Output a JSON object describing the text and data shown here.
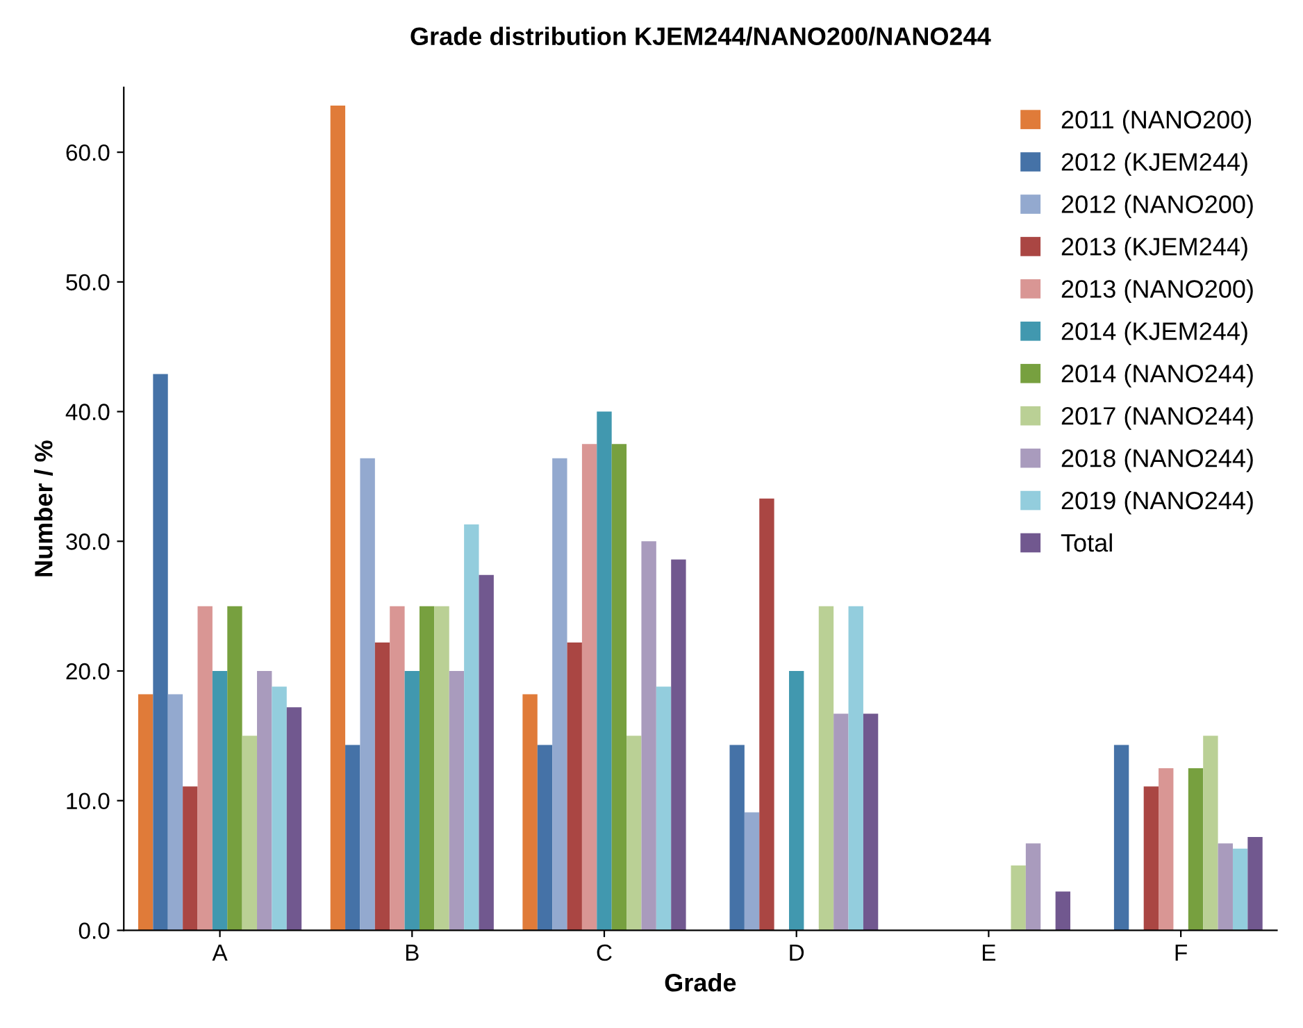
{
  "chart_data": {
    "type": "bar",
    "title": "Grade distribution KJEM244/NANO200/NANO244",
    "xlabel": "Grade",
    "ylabel": "Number / %",
    "categories": [
      "A",
      "B",
      "C",
      "D",
      "E",
      "F"
    ],
    "series": [
      {
        "name": "2011 (NANO200)",
        "color": "#e07b39",
        "values": [
          18.2,
          63.6,
          18.2,
          0,
          0,
          0
        ]
      },
      {
        "name": "2012 (KJEM244)",
        "color": "#4572a7",
        "values": [
          42.9,
          14.3,
          14.3,
          14.3,
          0,
          14.3
        ]
      },
      {
        "name": "2012 (NANO200)",
        "color": "#93a9cf",
        "values": [
          18.2,
          36.4,
          36.4,
          9.1,
          0,
          0
        ]
      },
      {
        "name": "2013 (KJEM244)",
        "color": "#aa4643",
        "values": [
          11.1,
          22.2,
          22.2,
          33.3,
          0,
          11.1
        ]
      },
      {
        "name": "2013 (NANO200)",
        "color": "#d99694",
        "values": [
          25.0,
          25.0,
          37.5,
          0,
          0,
          12.5
        ]
      },
      {
        "name": "2014 (KJEM244)",
        "color": "#4198af",
        "values": [
          20.0,
          20.0,
          40.0,
          20.0,
          0,
          0
        ]
      },
      {
        "name": "2014 (NANO244)",
        "color": "#77a03f",
        "values": [
          25.0,
          25.0,
          37.5,
          0,
          0,
          12.5
        ]
      },
      {
        "name": "2017 (NANO244)",
        "color": "#bad095",
        "values": [
          15.0,
          25.0,
          15.0,
          25.0,
          5.0,
          15.0
        ]
      },
      {
        "name": "2018 (NANO244)",
        "color": "#a99bbd",
        "values": [
          20.0,
          20.0,
          30.0,
          16.7,
          6.7,
          6.7
        ]
      },
      {
        "name": "2019 (NANO244)",
        "color": "#93cddd",
        "values": [
          18.8,
          31.3,
          18.8,
          25.0,
          0,
          6.3
        ]
      },
      {
        "name": "Total",
        "color": "#71588f",
        "values": [
          17.2,
          27.4,
          28.6,
          16.7,
          3.0,
          7.2
        ]
      }
    ],
    "ylim": [
      0,
      65
    ],
    "yticks": [
      {
        "value": 0,
        "label": "0.0"
      },
      {
        "value": 10,
        "label": "10.0"
      },
      {
        "value": 20,
        "label": "20.0"
      },
      {
        "value": 30,
        "label": "30.0"
      },
      {
        "value": 40,
        "label": "40.0"
      },
      {
        "value": 50,
        "label": "50.0"
      },
      {
        "value": 60,
        "label": "60.0"
      }
    ],
    "grid": false,
    "legend": "top right"
  }
}
